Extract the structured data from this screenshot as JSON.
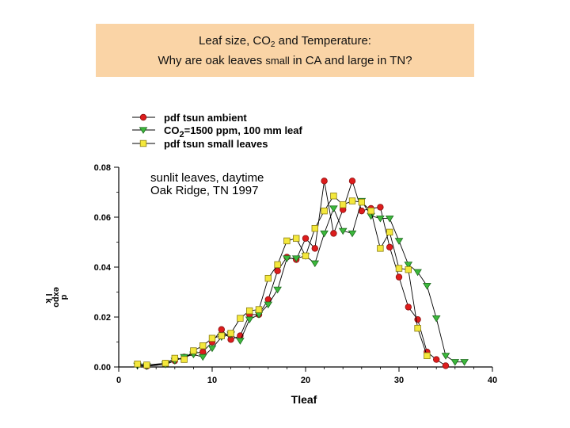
{
  "slide": {
    "title_line1_pre": "Leaf size, CO",
    "title_line1_sub": "2",
    "title_line1_post": " and Temperature:",
    "title_line2_pre": "Why are oak leaves ",
    "title_line2_small": "small",
    "title_line2_post": " in CA and large in TN?"
  },
  "chart_data": {
    "type": "line",
    "title": "",
    "xlabel": "Tleaf",
    "ylabel": "d\nexpo\n  l  k",
    "xlim": [
      0,
      40
    ],
    "ylim": [
      0,
      0.08
    ],
    "xticks": [
      0,
      10,
      20,
      30,
      40
    ],
    "yticks": [
      "0.00",
      "0.02",
      "0.04",
      "0.06",
      "0.08"
    ],
    "legend_position": "top-left above plot",
    "annotations": [
      "sunlit leaves, daytime",
      "Oak Ridge, TN 1997"
    ],
    "series": [
      {
        "name": "pdf tsun ambient",
        "marker": "circle",
        "color": "#dd1c1c",
        "points": [
          [
            2,
            0.001
          ],
          [
            3,
            0.0003
          ],
          [
            5,
            0.0015
          ],
          [
            6,
            0.0025
          ],
          [
            7,
            0.004
          ],
          [
            8,
            0.0055
          ],
          [
            9,
            0.006
          ],
          [
            10,
            0.01
          ],
          [
            11,
            0.015
          ],
          [
            12,
            0.011
          ],
          [
            13,
            0.0125
          ],
          [
            14,
            0.021
          ],
          [
            15,
            0.021
          ],
          [
            16,
            0.027
          ],
          [
            17,
            0.0385
          ],
          [
            18,
            0.044
          ],
          [
            19,
            0.043
          ],
          [
            20,
            0.0515
          ],
          [
            21,
            0.0475
          ],
          [
            22,
            0.0745
          ],
          [
            23,
            0.0535
          ],
          [
            24,
            0.063
          ],
          [
            25,
            0.0745
          ],
          [
            26,
            0.0625
          ],
          [
            27,
            0.0635
          ],
          [
            28,
            0.064
          ],
          [
            29,
            0.048
          ],
          [
            30,
            0.036
          ],
          [
            31,
            0.024
          ],
          [
            32,
            0.019
          ],
          [
            33,
            0.006
          ],
          [
            34,
            0.003
          ],
          [
            35,
            0.0005
          ]
        ]
      },
      {
        "name": "CO2=1500 ppm, 100 mm leaf",
        "marker": "triangle-down",
        "color": "#3cb83c",
        "points": [
          [
            2,
            0.0005
          ],
          [
            3,
            0.0003
          ],
          [
            5,
            0.001
          ],
          [
            6,
            0.0025
          ],
          [
            7,
            0.004
          ],
          [
            8,
            0.005
          ],
          [
            9,
            0.004
          ],
          [
            10,
            0.0075
          ],
          [
            11,
            0.012
          ],
          [
            12,
            0.013
          ],
          [
            13,
            0.0105
          ],
          [
            14,
            0.019
          ],
          [
            15,
            0.021
          ],
          [
            16,
            0.025
          ],
          [
            17,
            0.031
          ],
          [
            18,
            0.0435
          ],
          [
            19,
            0.0435
          ],
          [
            20,
            0.0445
          ],
          [
            21,
            0.0415
          ],
          [
            22,
            0.0535
          ],
          [
            23,
            0.0635
          ],
          [
            24,
            0.0545
          ],
          [
            25,
            0.0535
          ],
          [
            26,
            0.0665
          ],
          [
            27,
            0.0605
          ],
          [
            28,
            0.0595
          ],
          [
            29,
            0.0595
          ],
          [
            30,
            0.0505
          ],
          [
            31,
            0.041
          ],
          [
            32,
            0.038
          ],
          [
            33,
            0.0325
          ],
          [
            34,
            0.0195
          ],
          [
            35,
            0.0045
          ],
          [
            36,
            0.002
          ],
          [
            37,
            0.002
          ]
        ]
      },
      {
        "name": "pdf tsun small leaves",
        "marker": "square",
        "color": "#f4e83c",
        "points": [
          [
            2,
            0.0012
          ],
          [
            3,
            0.0008
          ],
          [
            5,
            0.0015
          ],
          [
            6,
            0.0035
          ],
          [
            7,
            0.003
          ],
          [
            8,
            0.0065
          ],
          [
            9,
            0.0085
          ],
          [
            10,
            0.0115
          ],
          [
            11,
            0.0125
          ],
          [
            12,
            0.0135
          ],
          [
            13,
            0.0195
          ],
          [
            14,
            0.0225
          ],
          [
            15,
            0.023
          ],
          [
            16,
            0.0355
          ],
          [
            17,
            0.041
          ],
          [
            18,
            0.0505
          ],
          [
            19,
            0.0515
          ],
          [
            20,
            0.0445
          ],
          [
            21,
            0.0555
          ],
          [
            22,
            0.0625
          ],
          [
            23,
            0.0685
          ],
          [
            24,
            0.065
          ],
          [
            25,
            0.0665
          ],
          [
            26,
            0.066
          ],
          [
            27,
            0.0625
          ],
          [
            28,
            0.0475
          ],
          [
            29,
            0.054
          ],
          [
            30,
            0.0395
          ],
          [
            31,
            0.039
          ],
          [
            32,
            0.0155
          ],
          [
            33,
            0.0045
          ]
        ]
      }
    ]
  }
}
